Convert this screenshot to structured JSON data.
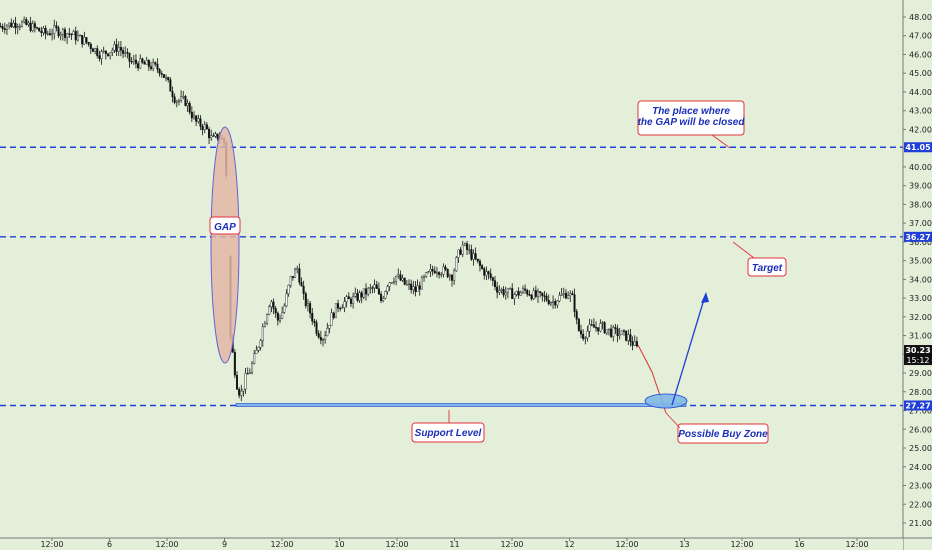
{
  "chart_data": {
    "type": "candlestick",
    "x_ticks": [
      "12:00",
      "6",
      "12:00",
      "9",
      "12:00",
      "10",
      "12:00",
      "11",
      "12:00",
      "12",
      "12:00",
      "13",
      "12:00",
      "16",
      "12:00"
    ],
    "y_ticks": [
      "48.00",
      "47.00",
      "46.00",
      "45.00",
      "44.00",
      "43.00",
      "42.00",
      "41.00",
      "40.00",
      "39.00",
      "38.00",
      "37.00",
      "36.00",
      "35.00",
      "34.00",
      "33.00",
      "32.00",
      "31.00",
      "30.00",
      "29.00",
      "28.00",
      "27.00",
      "26.00",
      "25.00",
      "24.00",
      "23.00",
      "22.00",
      "21.00"
    ],
    "ylim": [
      20.4,
      48.6
    ],
    "levels": [
      {
        "label": "41.05",
        "value": 41.05
      },
      {
        "label": "36.27",
        "value": 36.27
      },
      {
        "label": "27.27",
        "value": 27.27
      }
    ],
    "last_price": {
      "label": "30.23",
      "value": 30.23,
      "timer": "15:12"
    },
    "price_path": [
      [
        0,
        47.5
      ],
      [
        18,
        47.7
      ],
      [
        30,
        47.5
      ],
      [
        45,
        47.1
      ],
      [
        55,
        47.3
      ],
      [
        70,
        47.1
      ],
      [
        85,
        46.7
      ],
      [
        100,
        46.0
      ],
      [
        118,
        46.4
      ],
      [
        130,
        45.6
      ],
      [
        150,
        45.4
      ],
      [
        160,
        45.2
      ],
      [
        168,
        44.4
      ],
      [
        175,
        43.6
      ],
      [
        185,
        43.5
      ],
      [
        195,
        42.4
      ],
      [
        205,
        42.1
      ],
      [
        212,
        41.4
      ],
      [
        218,
        41.7
      ],
      [
        225,
        41.2
      ],
      [
        230,
        30.9
      ],
      [
        236,
        28.5
      ],
      [
        240,
        27.8
      ],
      [
        245,
        28.7
      ],
      [
        250,
        29.2
      ],
      [
        257,
        30.3
      ],
      [
        263,
        31.6
      ],
      [
        270,
        33.0
      ],
      [
        277,
        31.8
      ],
      [
        283,
        32.4
      ],
      [
        290,
        34.0
      ],
      [
        297,
        34.6
      ],
      [
        303,
        33.0
      ],
      [
        310,
        32.2
      ],
      [
        317,
        31.2
      ],
      [
        323,
        30.9
      ],
      [
        330,
        31.9
      ],
      [
        337,
        32.6
      ],
      [
        345,
        32.8
      ],
      [
        355,
        33.0
      ],
      [
        365,
        33.3
      ],
      [
        375,
        33.6
      ],
      [
        380,
        32.8
      ],
      [
        387,
        33.8
      ],
      [
        395,
        34.2
      ],
      [
        405,
        33.7
      ],
      [
        415,
        33.4
      ],
      [
        425,
        34.1
      ],
      [
        435,
        34.6
      ],
      [
        445,
        34.4
      ],
      [
        452,
        34.2
      ],
      [
        457,
        35.2
      ],
      [
        462,
        35.8
      ],
      [
        468,
        35.5
      ],
      [
        475,
        35.0
      ],
      [
        482,
        34.5
      ],
      [
        490,
        34.1
      ],
      [
        497,
        33.5
      ],
      [
        505,
        33.3
      ],
      [
        515,
        33.2
      ],
      [
        525,
        33.4
      ],
      [
        535,
        33.1
      ],
      [
        545,
        33.0
      ],
      [
        552,
        32.8
      ],
      [
        560,
        33.1
      ],
      [
        567,
        33.3
      ],
      [
        573,
        32.9
      ],
      [
        577,
        31.4
      ],
      [
        582,
        31.0
      ],
      [
        590,
        31.4
      ],
      [
        600,
        31.5
      ],
      [
        610,
        31.2
      ],
      [
        620,
        31.1
      ],
      [
        628,
        30.9
      ],
      [
        635,
        30.4
      ],
      [
        638,
        30.2
      ]
    ],
    "annotations": {
      "gap": "GAP",
      "target": "Target",
      "support": "Support Level",
      "buy_zone": "Possible Buy Zone",
      "gap_close_line1": "The place where",
      "gap_close_line2": "the GAP will be closed"
    },
    "colors": {
      "background": "#e3efd9",
      "candle": "#111111",
      "level_line": "#1f3fd6",
      "label_bg": "#1f3fd6",
      "last_price_bg": "#111111",
      "gap_fill": "#e3b6a6",
      "gap_stroke": "#6a5fd6",
      "note_border": "#e0303a",
      "note_text": "#1a2fb8",
      "projection_arrow": "#1f3fd6",
      "red_path": "#e0303a",
      "buy_zone_fill": "#7fb8e6"
    }
  }
}
